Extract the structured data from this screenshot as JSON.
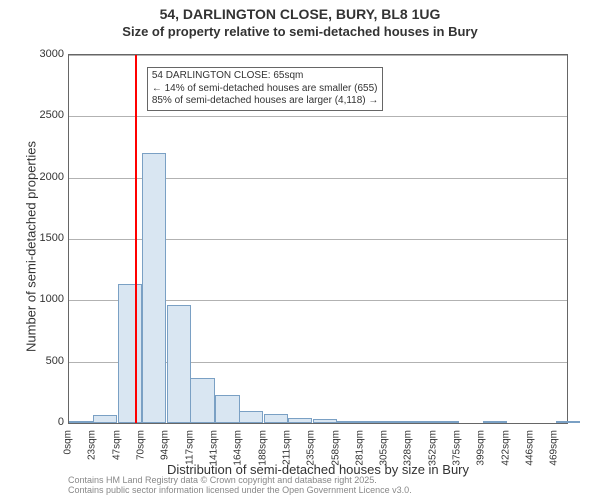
{
  "title_line1": "54, DARLINGTON CLOSE, BURY, BL8 1UG",
  "title_line2": "Size of property relative to semi-detached houses in Bury",
  "y_axis_label": "Number of semi-detached properties",
  "x_axis_label": "Distribution of semi-detached houses by size in Bury",
  "chart": {
    "type": "histogram",
    "background_color": "#ffffff",
    "axis_color": "#666666",
    "bar_fill": "#d9e6f2",
    "bar_border": "#7aa0c4",
    "marker_color": "#ff0000",
    "marker_x": 65,
    "x_min": 0,
    "x_max": 480,
    "x_tick_step": 23.44,
    "y_min": 0,
    "y_max": 3000,
    "y_tick_step": 500,
    "x_ticks": [
      "0sqm",
      "23sqm",
      "47sqm",
      "70sqm",
      "94sqm",
      "117sqm",
      "141sqm",
      "164sqm",
      "188sqm",
      "211sqm",
      "235sqm",
      "258sqm",
      "281sqm",
      "305sqm",
      "328sqm",
      "352sqm",
      "375sqm",
      "399sqm",
      "422sqm",
      "446sqm",
      "469sqm"
    ],
    "y_ticks": [
      "0",
      "500",
      "1000",
      "1500",
      "2000",
      "2500",
      "3000"
    ],
    "bin_width": 23.44,
    "bars": [
      {
        "x": 0,
        "count": 10
      },
      {
        "x": 23,
        "count": 65
      },
      {
        "x": 47,
        "count": 1130
      },
      {
        "x": 70,
        "count": 2200
      },
      {
        "x": 94,
        "count": 960
      },
      {
        "x": 117,
        "count": 370
      },
      {
        "x": 141,
        "count": 230
      },
      {
        "x": 164,
        "count": 100
      },
      {
        "x": 188,
        "count": 70
      },
      {
        "x": 211,
        "count": 40
      },
      {
        "x": 235,
        "count": 30
      },
      {
        "x": 258,
        "count": 20
      },
      {
        "x": 281,
        "count": 15
      },
      {
        "x": 305,
        "count": 10
      },
      {
        "x": 328,
        "count": 5
      },
      {
        "x": 352,
        "count": 5
      },
      {
        "x": 375,
        "count": 0
      },
      {
        "x": 399,
        "count": 5
      },
      {
        "x": 422,
        "count": 0
      },
      {
        "x": 446,
        "count": 0
      },
      {
        "x": 469,
        "count": 5
      }
    ]
  },
  "annotation": {
    "lines": [
      "54 DARLINGTON CLOSE: 65sqm",
      "← 14% of semi-detached houses are smaller (655)",
      "85% of semi-detached houses are larger (4,118) →"
    ],
    "box_top_data_y": 2900,
    "box_left_data_x": 75
  },
  "footer_line1": "Contains HM Land Registry data © Crown copyright and database right 2025.",
  "footer_line2": "Contains public sector information licensed under the Open Government Licence v3.0."
}
